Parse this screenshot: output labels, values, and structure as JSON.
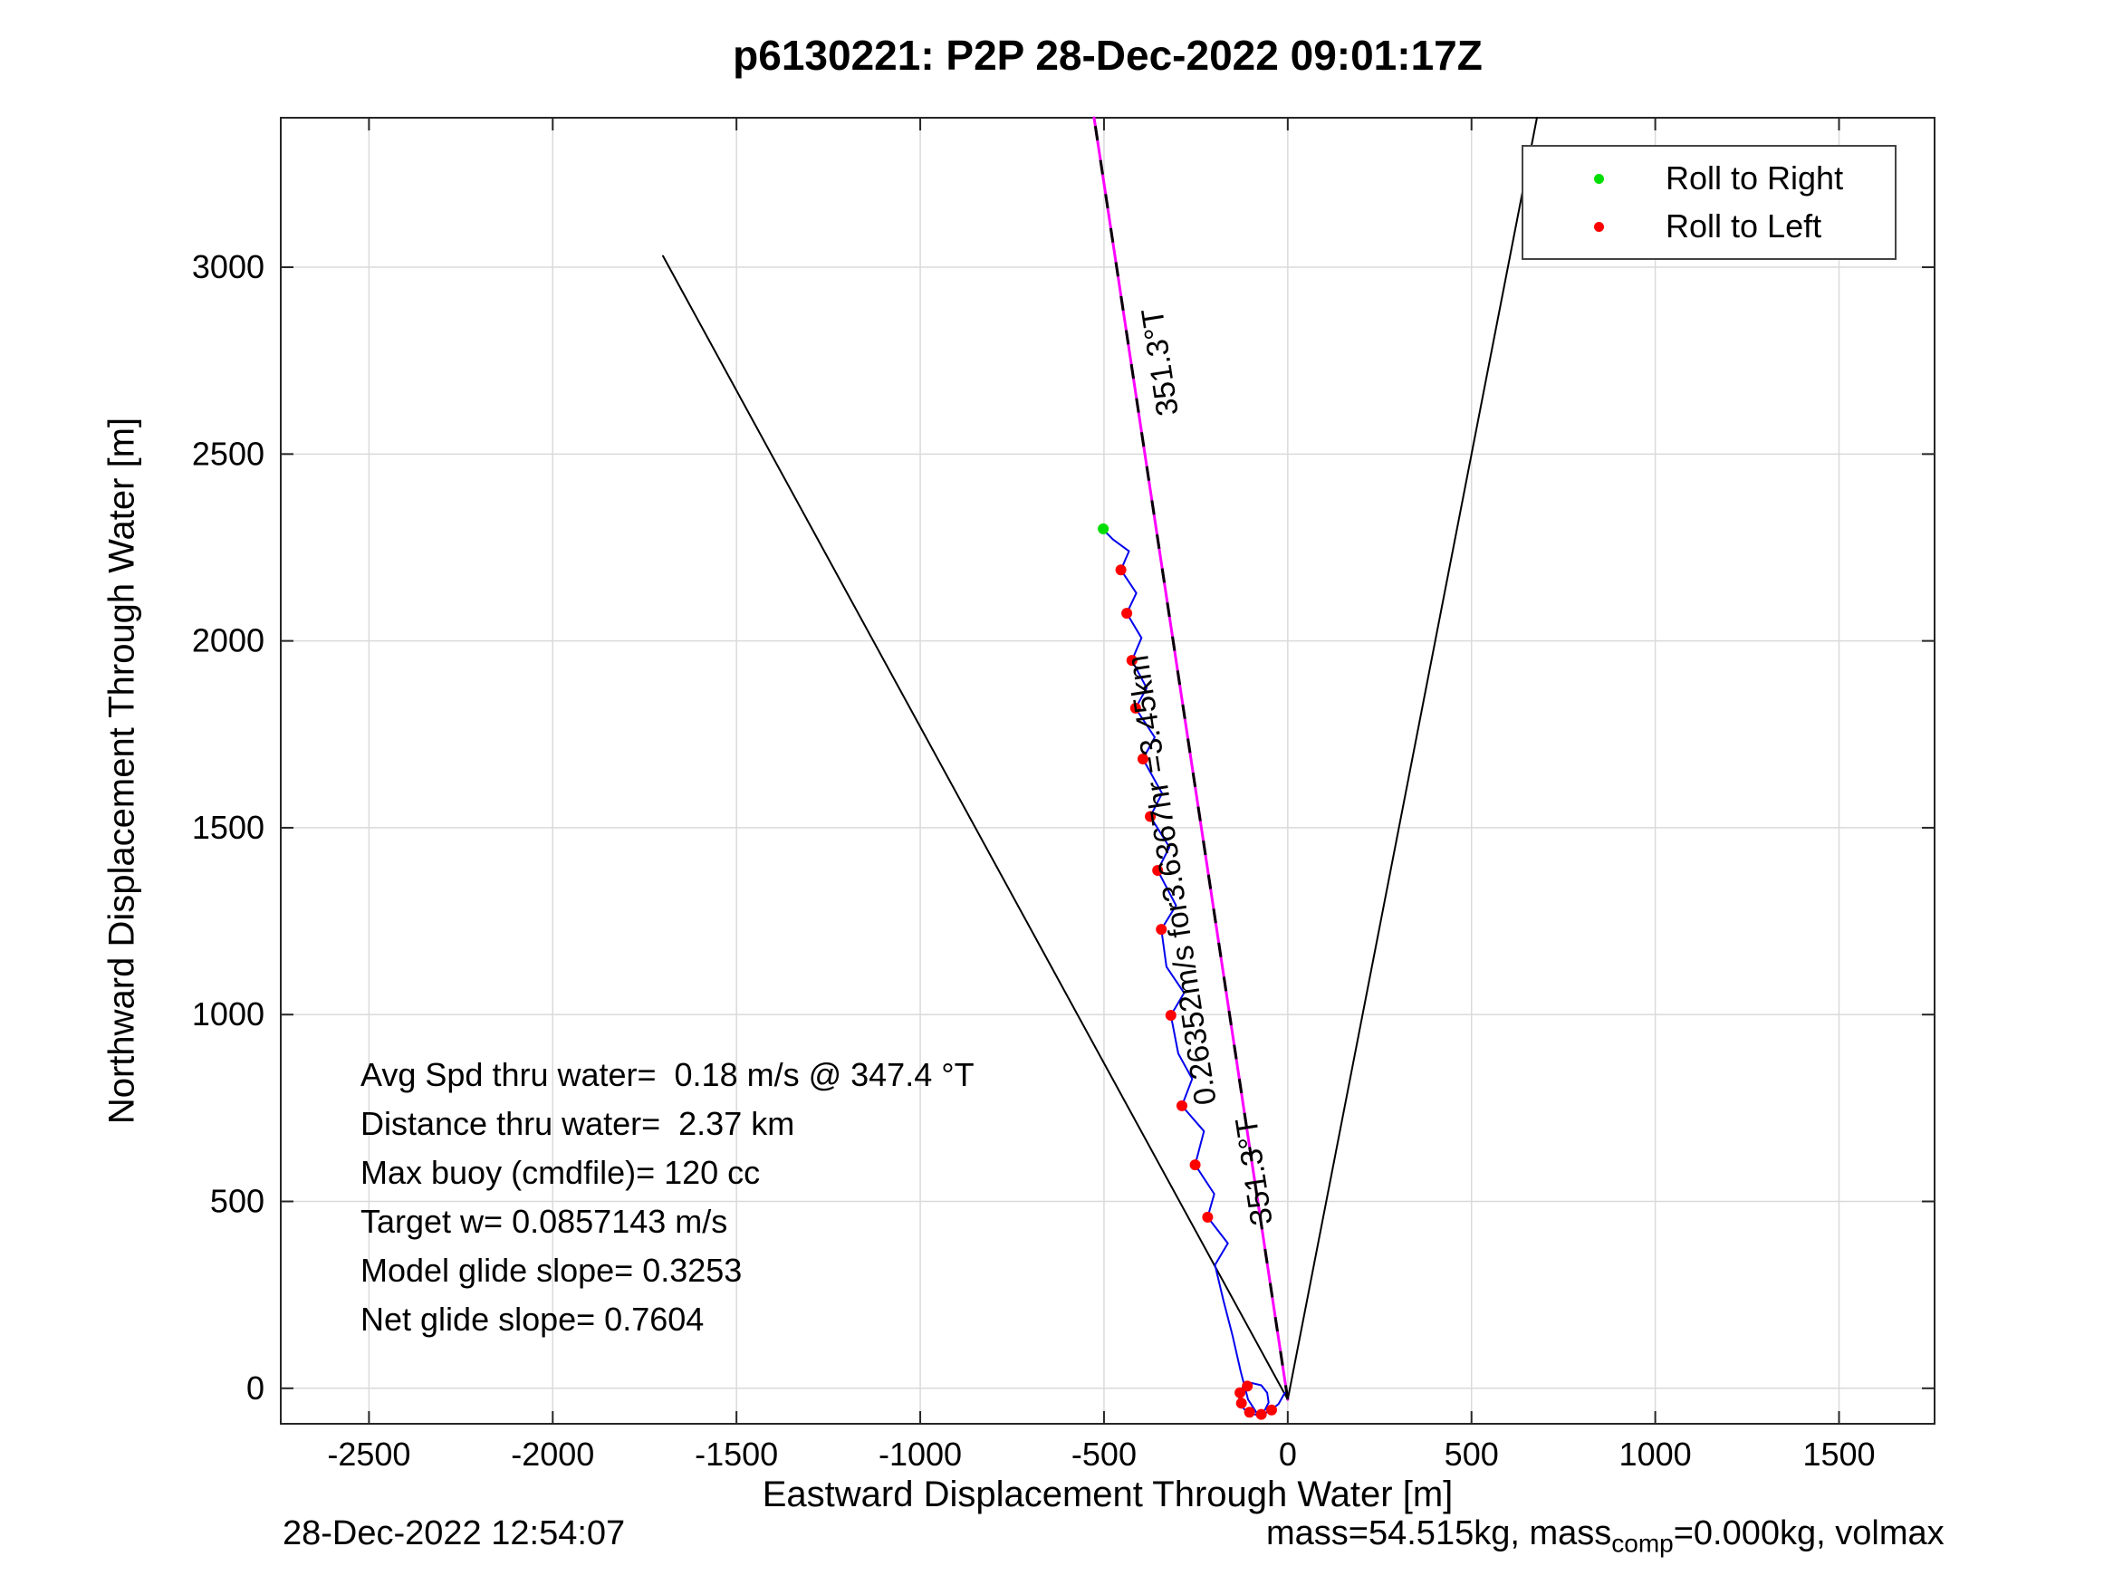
{
  "footer": {
    "left": "28-Dec-2022 12:54:07",
    "right_prefix": "mass=54.515kg, mass",
    "right_sub": "comp",
    "right_suffix": "=0.000kg, volmax"
  },
  "chart_data": {
    "type": "line",
    "title": "p6130221: P2P 28-Dec-2022 09:01:17Z",
    "xlabel": "Eastward Displacement Through Water [m]",
    "ylabel": "Northward Displacement Through Water [m]",
    "xlim": [
      -2740,
      1760
    ],
    "ylim": [
      -95,
      3400
    ],
    "xticks": [
      -2500,
      -2000,
      -1500,
      -1000,
      -500,
      0,
      500,
      1000,
      1500
    ],
    "yticks": [
      0,
      500,
      1000,
      1500,
      2000,
      2500,
      3000
    ],
    "grid": true,
    "grid_color": "#dadada",
    "axis_color": "#262626",
    "legend": {
      "position": "top-right",
      "entries": [
        {
          "label": "Roll to Right",
          "color": "#00dd00",
          "icon": "roll-right-dot-icon"
        },
        {
          "label": "Roll to Left",
          "color": "#ff0000",
          "icon": "roll-left-dot-icon"
        }
      ]
    },
    "series": [
      {
        "name": "bearing-fan-left",
        "kind": "line",
        "color": "#000000",
        "width": 2,
        "points": [
          [
            0,
            -30
          ],
          [
            -1700,
            3030
          ]
        ]
      },
      {
        "name": "bearing-fan-right",
        "kind": "line",
        "color": "#000000",
        "width": 2,
        "points": [
          [
            0,
            -30
          ],
          [
            678,
            3400
          ]
        ]
      },
      {
        "name": "desired-course-line",
        "kind": "line",
        "color": "#ff00ff",
        "width": 3,
        "dash_overlay": {
          "color": "#000000",
          "dash": "16 22"
        },
        "points": [
          [
            0,
            -30
          ],
          [
            -527,
            3400
          ]
        ]
      },
      {
        "name": "glide-track",
        "kind": "line",
        "color": "#0000ee",
        "width": 2,
        "points": [
          [
            -8,
            -12
          ],
          [
            -25,
            -42
          ],
          [
            -50,
            -62
          ],
          [
            -80,
            -72
          ],
          [
            -108,
            -66
          ],
          [
            -128,
            -46
          ],
          [
            -133,
            -20
          ],
          [
            -122,
            4
          ],
          [
            -98,
            14
          ],
          [
            -72,
            8
          ],
          [
            -56,
            -12
          ],
          [
            -52,
            -38
          ],
          [
            -62,
            -58
          ],
          [
            -82,
            -70
          ],
          [
            -108,
            -30
          ],
          [
            -128,
            45
          ],
          [
            -150,
            140
          ],
          [
            -175,
            235
          ],
          [
            -198,
            330
          ],
          [
            -163,
            388
          ],
          [
            -218,
            458
          ],
          [
            -200,
            520
          ],
          [
            -252,
            598
          ],
          [
            -228,
            688
          ],
          [
            -288,
            756
          ],
          [
            -260,
            828
          ],
          [
            -298,
            896
          ],
          [
            -318,
            998
          ],
          [
            -282,
            1058
          ],
          [
            -330,
            1128
          ],
          [
            -344,
            1228
          ],
          [
            -304,
            1292
          ],
          [
            -354,
            1386
          ],
          [
            -322,
            1448
          ],
          [
            -374,
            1530
          ],
          [
            -342,
            1592
          ],
          [
            -394,
            1684
          ],
          [
            -362,
            1742
          ],
          [
            -414,
            1820
          ],
          [
            -384,
            1874
          ],
          [
            -424,
            1948
          ],
          [
            -398,
            2008
          ],
          [
            -438,
            2074
          ],
          [
            -412,
            2128
          ],
          [
            -454,
            2190
          ],
          [
            -432,
            2240
          ],
          [
            -476,
            2272
          ],
          [
            -502,
            2298
          ]
        ]
      },
      {
        "name": "roll-to-left-markers",
        "kind": "scatter",
        "color": "#ff0000",
        "radius": 6,
        "points": [
          [
            -44,
            -58
          ],
          [
            -72,
            -70
          ],
          [
            -104,
            -64
          ],
          [
            -126,
            -40
          ],
          [
            -130,
            -12
          ],
          [
            -110,
            6
          ],
          [
            -218,
            458
          ],
          [
            -252,
            598
          ],
          [
            -288,
            756
          ],
          [
            -318,
            998
          ],
          [
            -344,
            1228
          ],
          [
            -354,
            1386
          ],
          [
            -374,
            1530
          ],
          [
            -394,
            1684
          ],
          [
            -414,
            1820
          ],
          [
            -424,
            1948
          ],
          [
            -438,
            2074
          ],
          [
            -454,
            2190
          ]
        ]
      },
      {
        "name": "roll-to-right-markers",
        "kind": "scatter",
        "color": "#00dd00",
        "radius": 6,
        "points": [
          [
            -502,
            2300
          ]
        ]
      }
    ],
    "rotated_labels": [
      {
        "text": "351.3°T",
        "x": -320,
        "y": 2750,
        "rot": -98.7,
        "size": 34
      },
      {
        "text": "0.26352m/s for3.6367hr =3.45km",
        "x": -288,
        "y": 1364,
        "rot": -98.7,
        "size": 34
      },
      {
        "text": "351.3°T",
        "x": -64,
        "y": 584,
        "rot": -98.7,
        "size": 34
      }
    ],
    "stats_box": {
      "lines": [
        "Avg Spd thru water=  0.18 m/s @ 347.4 °T",
        "Distance thru water=  2.37 km",
        "Max buoy (cmdfile)= 120 cc",
        "Target w= 0.0857143 m/s",
        "Model glide slope= 0.3253",
        "Net glide slope= 0.7604"
      ]
    }
  }
}
